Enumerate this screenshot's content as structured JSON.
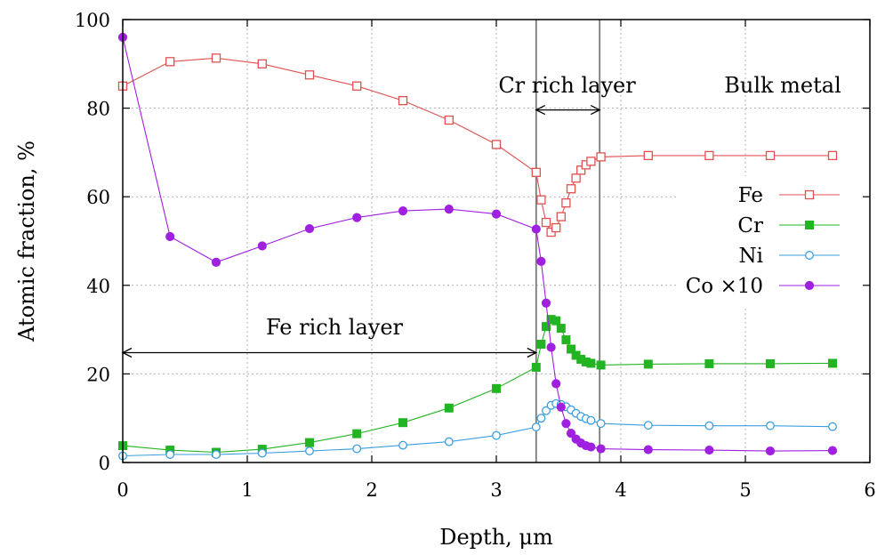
{
  "chart_data": {
    "type": "line",
    "xlabel": "Depth, μm",
    "ylabel": "Atomic fraction, %",
    "xlim": [
      0,
      6
    ],
    "ylim": [
      0,
      100
    ],
    "xticks": [
      0,
      1,
      2,
      3,
      4,
      5,
      6
    ],
    "yticks": [
      0,
      20,
      40,
      60,
      80,
      100
    ],
    "grid": true,
    "legend_position": "right",
    "series": [
      {
        "name": "Fe",
        "color": "#e05050",
        "marker": "square-open",
        "x": [
          0,
          0.38,
          0.75,
          1.12,
          1.5,
          1.88,
          2.25,
          2.62,
          3.0,
          3.32,
          3.36,
          3.4,
          3.44,
          3.48,
          3.52,
          3.56,
          3.6,
          3.64,
          3.68,
          3.72,
          3.76,
          3.84,
          4.22,
          4.71,
          5.2,
          5.7
        ],
        "y": [
          85,
          90.5,
          91.3,
          90,
          87.5,
          85,
          81.7,
          77.3,
          71.8,
          65.5,
          59.3,
          54.2,
          52,
          53,
          55.5,
          58.6,
          61.8,
          64.2,
          66,
          67.2,
          68,
          69,
          69.3,
          69.3,
          69.3,
          69.3
        ]
      },
      {
        "name": "Cr",
        "color": "#22b422",
        "marker": "square-filled",
        "x": [
          0,
          0.38,
          0.75,
          1.12,
          1.5,
          1.88,
          2.25,
          2.62,
          3.0,
          3.32,
          3.36,
          3.4,
          3.44,
          3.48,
          3.52,
          3.56,
          3.6,
          3.64,
          3.68,
          3.72,
          3.76,
          3.84,
          4.22,
          4.71,
          5.2,
          5.7
        ],
        "y": [
          3.8,
          2.8,
          2.3,
          3.0,
          4.5,
          6.5,
          9.0,
          12.3,
          16.7,
          21.5,
          26.7,
          30.7,
          32.3,
          32.0,
          30.3,
          27.7,
          25.6,
          24.2,
          23.3,
          22.7,
          22.4,
          22.0,
          22.2,
          22.3,
          22.3,
          22.4
        ]
      },
      {
        "name": "Ni",
        "color": "#3a9ee0",
        "marker": "circle-open",
        "x": [
          0,
          0.38,
          0.75,
          1.12,
          1.5,
          1.88,
          2.25,
          2.62,
          3.0,
          3.32,
          3.36,
          3.4,
          3.44,
          3.48,
          3.52,
          3.56,
          3.6,
          3.64,
          3.68,
          3.72,
          3.76,
          3.84,
          4.22,
          4.71,
          5.2,
          5.7
        ],
        "y": [
          1.5,
          1.8,
          1.8,
          2.1,
          2.6,
          3.1,
          3.9,
          4.7,
          6.1,
          8.0,
          10.0,
          11.7,
          12.9,
          13.3,
          13.1,
          12.6,
          11.9,
          11.1,
          10.4,
          9.9,
          9.5,
          8.8,
          8.4,
          8.3,
          8.3,
          8.1
        ]
      },
      {
        "name": "Co ×10",
        "color": "#a020e0",
        "marker": "circle-filled",
        "x": [
          0,
          0.38,
          0.75,
          1.12,
          1.5,
          1.88,
          2.25,
          2.62,
          3.0,
          3.32,
          3.36,
          3.4,
          3.44,
          3.48,
          3.52,
          3.56,
          3.6,
          3.64,
          3.68,
          3.72,
          3.76,
          3.84,
          4.22,
          4.71,
          5.2,
          5.7
        ],
        "y": [
          96,
          51,
          45.2,
          48.9,
          52.8,
          55.3,
          56.8,
          57.2,
          56.1,
          52.7,
          45.4,
          36.0,
          26.0,
          17.8,
          12.5,
          8.8,
          6.6,
          5.3,
          4.4,
          3.8,
          3.5,
          3.1,
          2.9,
          2.8,
          2.6,
          2.7
        ]
      }
    ],
    "vertical_lines": [
      3.32,
      3.83
    ],
    "annotations": [
      {
        "text": "Cr rich layer",
        "arrow_from": 3.32,
        "arrow_to": 3.83,
        "arrow_y": 80
      },
      {
        "text": "Bulk metal"
      },
      {
        "text": "Fe rich layer",
        "arrow_from": 0,
        "arrow_to": 3.32,
        "arrow_y": 25
      }
    ]
  }
}
